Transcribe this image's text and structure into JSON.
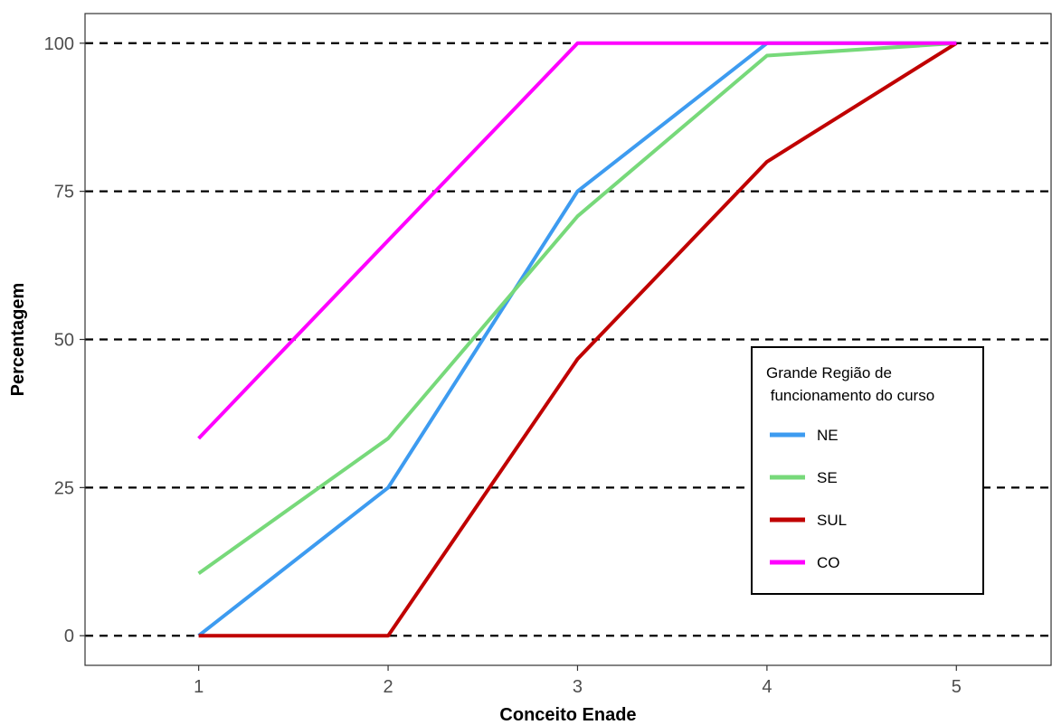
{
  "chart_data": {
    "type": "line",
    "xlabel": "Conceito Enade",
    "ylabel": "Percentagem",
    "x": [
      1,
      2,
      3,
      4,
      5
    ],
    "xlim": [
      0.4,
      5.5
    ],
    "ylim": [
      -5,
      105
    ],
    "x_ticks": [
      1,
      2,
      3,
      4,
      5
    ],
    "y_ticks": [
      0,
      25,
      50,
      75,
      100
    ],
    "grid": "horizontal dashed",
    "legend": {
      "title_line1": "Grande Região de",
      "title_line2": " funcionamento do curso",
      "placement": "bottom-right"
    },
    "series": [
      {
        "name": "NE",
        "color": "#3d9bf0",
        "values": [
          0,
          25,
          75,
          100,
          100
        ]
      },
      {
        "name": "SE",
        "color": "#77d97a",
        "values": [
          10.5,
          33.3,
          70.8,
          97.9,
          100
        ]
      },
      {
        "name": "SUL",
        "color": "#c00000",
        "values": [
          0,
          0,
          46.7,
          80,
          100
        ]
      },
      {
        "name": "CO",
        "color": "#ff00ff",
        "values": [
          33.3,
          66.7,
          100,
          100,
          100
        ]
      }
    ]
  }
}
